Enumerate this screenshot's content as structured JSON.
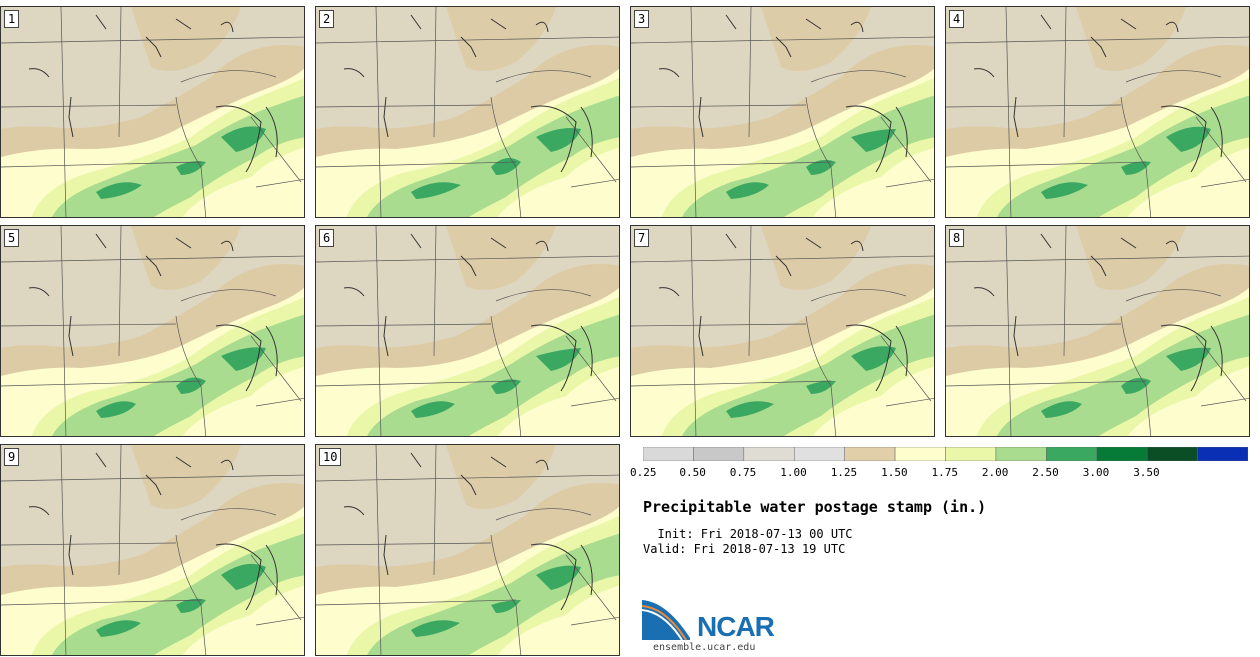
{
  "panels": [
    {
      "label": "1"
    },
    {
      "label": "2"
    },
    {
      "label": "3"
    },
    {
      "label": "4"
    },
    {
      "label": "5"
    },
    {
      "label": "6"
    },
    {
      "label": "7"
    },
    {
      "label": "8"
    },
    {
      "label": "9"
    },
    {
      "label": "10"
    }
  ],
  "colorbar": {
    "ticks": [
      "0.25",
      "0.50",
      "0.75",
      "1.00",
      "1.25",
      "1.50",
      "1.75",
      "2.00",
      "2.50",
      "3.00",
      "3.50"
    ],
    "colors": [
      "#d9d9d9",
      "#c8c8c8",
      "#dedcd3",
      "#e0e0e0",
      "#e0cfa9",
      "#fdfdcd",
      "#eaf7a8",
      "#a9dc8e",
      "#3ba862",
      "#067a37",
      "#0b4d24",
      "#0a2fb5"
    ]
  },
  "map_colors": {
    "dry": "#ddd6c0",
    "tan": "#ddcba5",
    "light_yellow": "#fdfdcd",
    "yellow_green": "#eaf7a8",
    "light_green": "#a9dc8e",
    "green": "#3ba862"
  },
  "title": "Precipitable water postage stamp (in.)",
  "init_line": "  Init: Fri 2018-07-13 00 UTC",
  "valid_line": "Valid: Fri 2018-07-13 19 UTC",
  "logo": {
    "text": "NCAR",
    "site": "ensemble.ucar.edu"
  }
}
